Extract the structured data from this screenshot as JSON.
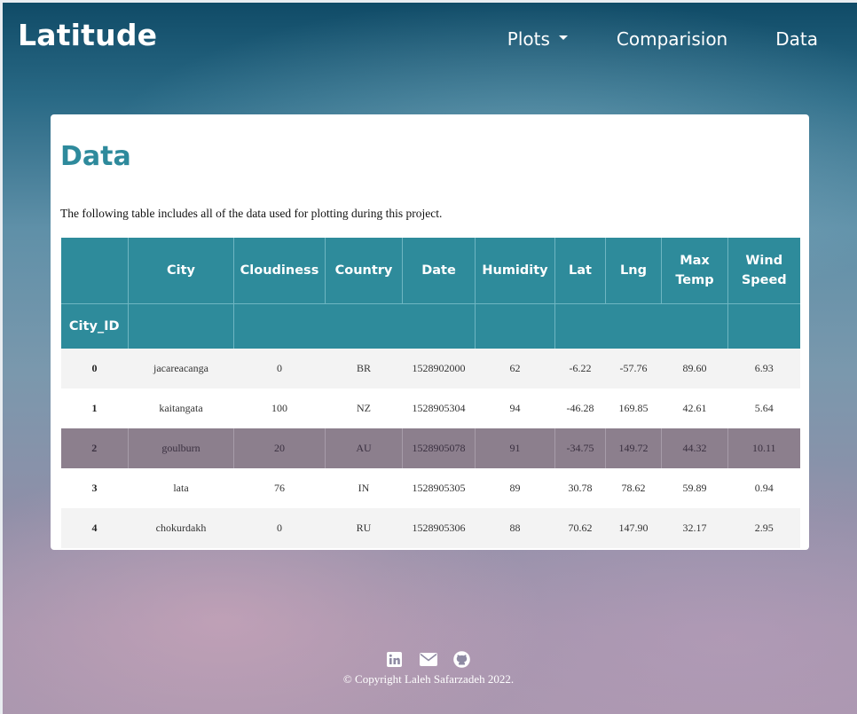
{
  "brand": "Latitude",
  "nav": {
    "plots": "Plots",
    "comparision": "Comparision",
    "data": "Data"
  },
  "page": {
    "title": "Data",
    "intro": "The following table includes all of the data used for plotting during this project."
  },
  "table": {
    "columns": [
      "",
      "City",
      "Cloudiness",
      "Country",
      "Date",
      "Humidity",
      "Lat",
      "Lng",
      "Max Temp",
      "Wind Speed"
    ],
    "index_name": "City_ID",
    "rows": [
      [
        "0",
        "jacareacanga",
        "0",
        "BR",
        "1528902000",
        "62",
        "-6.22",
        "-57.76",
        "89.60",
        "6.93"
      ],
      [
        "1",
        "kaitangata",
        "100",
        "NZ",
        "1528905304",
        "94",
        "-46.28",
        "169.85",
        "42.61",
        "5.64"
      ],
      [
        "2",
        "goulburn",
        "20",
        "AU",
        "1528905078",
        "91",
        "-34.75",
        "149.72",
        "44.32",
        "10.11"
      ],
      [
        "3",
        "lata",
        "76",
        "IN",
        "1528905305",
        "89",
        "30.78",
        "78.62",
        "59.89",
        "0.94"
      ],
      [
        "4",
        "chokurdakh",
        "0",
        "RU",
        "1528905306",
        "88",
        "70.62",
        "147.90",
        "32.17",
        "2.95"
      ]
    ]
  },
  "footer": {
    "icons": [
      "linkedin-icon",
      "envelope-icon",
      "github-icon"
    ],
    "copyright": "© Copyright Laleh Safarzadeh 2022."
  }
}
